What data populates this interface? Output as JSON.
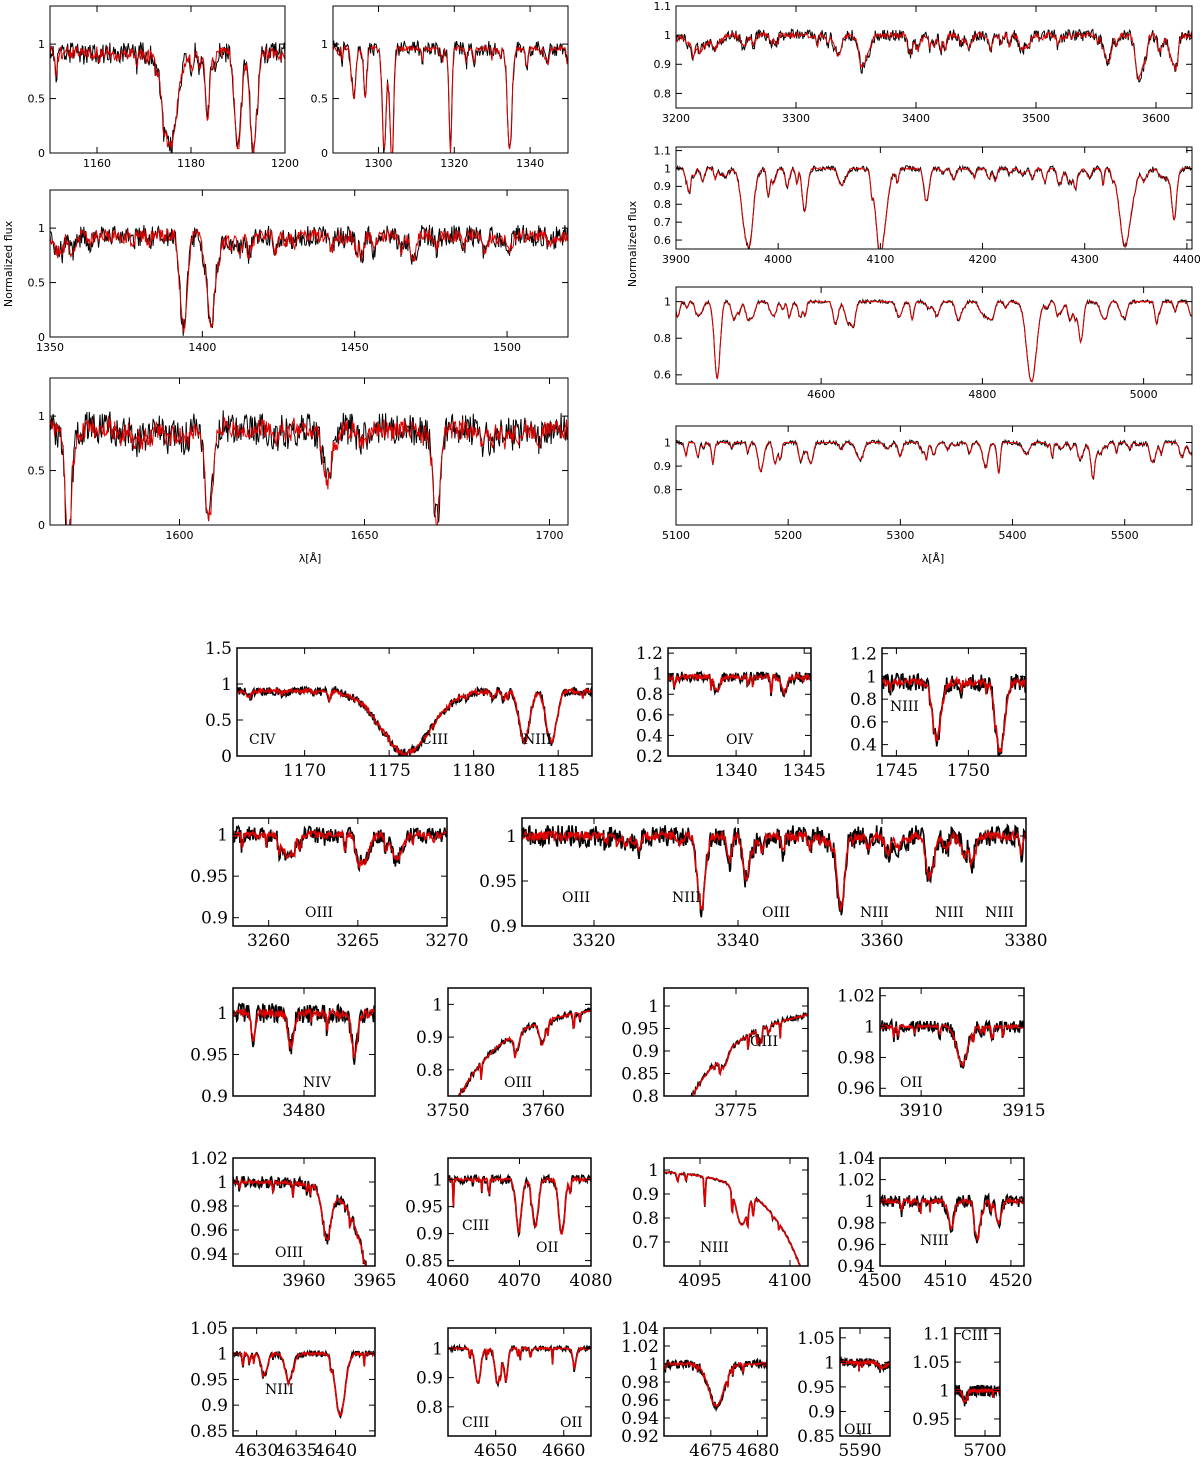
{
  "figure": {
    "colors": {
      "observed": "#000000",
      "model": "#e00000"
    },
    "top_xlabel": "λ[Å]",
    "top_ylabel": "Normalized flux"
  },
  "chart_data": [
    {
      "type": "line",
      "id": "p1",
      "xlim": [
        1150,
        1200
      ],
      "ylim": [
        0,
        1.35
      ],
      "xticks": [
        1160,
        1180,
        1200
      ],
      "yticks": [
        0,
        0.5,
        1
      ],
      "lines": [
        [
          1175.5,
          0.06,
          1.5
        ],
        [
          1190.0,
          0.05,
          0.7
        ],
        [
          1193.3,
          0.05,
          0.7
        ],
        [
          1183.5,
          0.3,
          0.4
        ]
      ],
      "noise": 0.1,
      "mnoise": 0.12,
      "cont": 0.92,
      "ylabel": "",
      "labels": []
    },
    {
      "type": "line",
      "id": "p2",
      "xlim": [
        1288,
        1350
      ],
      "ylim": [
        0,
        1.35
      ],
      "xticks": [
        1300,
        1320,
        1340
      ],
      "yticks": [
        0,
        0.5,
        1
      ],
      "lines": [
        [
          1301.5,
          0.02,
          0.5
        ],
        [
          1303.5,
          0.02,
          0.5
        ],
        [
          1319,
          0.02,
          0.35
        ],
        [
          1334.6,
          0.02,
          0.6
        ],
        [
          1293.5,
          0.6,
          0.5
        ],
        [
          1296.5,
          0.5,
          0.4
        ]
      ],
      "noise": 0.07,
      "mnoise": 0.05,
      "cont": 0.96,
      "ylabel": "",
      "labels": []
    },
    {
      "type": "line",
      "id": "p3",
      "xlim": [
        1350,
        1520
      ],
      "ylim": [
        0,
        1.35
      ],
      "xticks": [
        1350,
        1400,
        1450,
        1500
      ],
      "yticks": [
        0,
        0.5,
        1
      ],
      "lines": [
        [
          1393.8,
          0.1,
          1.2
        ],
        [
          1402.8,
          0.1,
          1.2
        ]
      ],
      "noise": 0.1,
      "mnoise": 0.12,
      "cont": 0.93,
      "ylabel": "",
      "labels": []
    },
    {
      "type": "line",
      "id": "p4",
      "xlim": [
        1565,
        1705
      ],
      "ylim": [
        0,
        1.35
      ],
      "xticks": [
        1600,
        1650,
        1700
      ],
      "yticks": [
        0,
        0.5,
        1
      ],
      "lines": [
        [
          1608,
          0.1,
          1.0
        ],
        [
          1669.5,
          0.05,
          1.0
        ],
        [
          1570,
          0,
          0.8
        ],
        [
          1640,
          0.4,
          1.0
        ]
      ],
      "noise": 0.15,
      "mnoise": 0.18,
      "cont": 0.88,
      "ylabel": "",
      "labels": []
    },
    {
      "type": "line",
      "id": "p5",
      "xlim": [
        3200,
        3630
      ],
      "ylim": [
        0.75,
        1.1
      ],
      "xticks": [
        3200,
        3300,
        3400,
        3500,
        3600
      ],
      "yticks": [
        0.8,
        0.9,
        1,
        1.1
      ],
      "lines": [
        [
          3587,
          0.87,
          3
        ],
        [
          3335,
          0.93,
          3
        ],
        [
          3355,
          0.93,
          3
        ]
      ],
      "noise": 0.02,
      "mnoise": 0.02,
      "cont": 1.0,
      "ylabel": "",
      "labels": []
    },
    {
      "type": "line",
      "id": "p6",
      "xlim": [
        3900,
        4405
      ],
      "ylim": [
        0.55,
        1.12
      ],
      "xticks": [
        3900,
        4000,
        4100,
        4200,
        4300,
        4400
      ],
      "yticks": [
        0.6,
        0.7,
        0.8,
        0.9,
        1,
        1.1
      ],
      "lines": [
        [
          3970,
          0.58,
          5
        ],
        [
          4101,
          0.58,
          5
        ],
        [
          4340,
          0.58,
          5
        ],
        [
          4026,
          0.8,
          2.5
        ],
        [
          4009,
          0.9,
          2
        ],
        [
          4144,
          0.88,
          2
        ],
        [
          4387,
          0.85,
          2.5
        ],
        [
          3926,
          0.93,
          2
        ]
      ],
      "noise": 0.015,
      "mnoise": 0.01,
      "cont": 1.0,
      "ylabel": "Normalized flux",
      "labels": []
    },
    {
      "type": "line",
      "id": "p7",
      "xlim": [
        4420,
        5060
      ],
      "ylim": [
        0.55,
        1.08
      ],
      "xticks": [
        4600,
        4800,
        5000
      ],
      "yticks": [
        0.6,
        0.8,
        1
      ],
      "lines": [
        [
          4861,
          0.56,
          6
        ],
        [
          4471,
          0.62,
          3
        ],
        [
          4922,
          0.78,
          3
        ],
        [
          5016,
          0.88,
          2
        ],
        [
          4713,
          0.9,
          2
        ]
      ],
      "noise": 0.01,
      "mnoise": 0.008,
      "cont": 1.0,
      "ylabel": "",
      "labels": []
    },
    {
      "type": "line",
      "id": "p8",
      "xlim": [
        5100,
        5560
      ],
      "ylim": [
        0.65,
        1.07
      ],
      "xticks": [
        5100,
        5200,
        5300,
        5400,
        5500
      ],
      "yticks": [
        0.8,
        0.9,
        1
      ],
      "lines": [
        [
          5412,
          0.95,
          3
        ]
      ],
      "noise": 0.01,
      "mnoise": 0.004,
      "cont": 1.0,
      "ylabel": "",
      "labels": []
    },
    {
      "type": "line",
      "id": "z1",
      "xlim": [
        1166,
        1187
      ],
      "ylim": [
        0,
        1.5
      ],
      "xticks": [
        1170,
        1175,
        1180,
        1185
      ],
      "yticks": [
        0,
        0.5,
        1,
        1.5
      ],
      "lines": [
        [
          1176,
          0.05,
          1.5
        ],
        [
          1183,
          0.2,
          0.3
        ],
        [
          1184.6,
          0.2,
          0.3
        ]
      ],
      "noise": 0.06,
      "mnoise": 0.06,
      "cont": 0.9,
      "ylabel": "",
      "labels": [
        "CIV",
        "CIII",
        "NIII"
      ]
    },
    {
      "type": "line",
      "id": "z2",
      "xlim": [
        1335,
        1345.5
      ],
      "ylim": [
        0.2,
        1.25
      ],
      "xticks": [
        1340,
        1345
      ],
      "yticks": [
        0.2,
        0.4,
        0.6,
        0.8,
        1,
        1.2
      ],
      "lines": [
        [
          1338.6,
          0.82,
          0.2
        ],
        [
          1343.5,
          0.82,
          0.2
        ]
      ],
      "noise": 0.05,
      "mnoise": 0.05,
      "cont": 0.97,
      "ylabel": "",
      "labels": [
        "OIV"
      ]
    },
    {
      "type": "line",
      "id": "z3",
      "xlim": [
        1744,
        1754
      ],
      "ylim": [
        0.3,
        1.25
      ],
      "xticks": [
        1745,
        1750
      ],
      "yticks": [
        0.4,
        0.6,
        0.8,
        1,
        1.2
      ],
      "lines": [
        [
          1747.8,
          0.45,
          0.3
        ],
        [
          1752.2,
          0.35,
          0.3
        ]
      ],
      "noise": 0.08,
      "mnoise": 0.07,
      "cont": 0.95,
      "ylabel": "",
      "labels": [
        "NIII"
      ]
    },
    {
      "type": "line",
      "id": "z4",
      "xlim": [
        3258,
        3270
      ],
      "ylim": [
        0.89,
        1.02
      ],
      "xticks": [
        3260,
        3265,
        3270
      ],
      "yticks": [
        0.9,
        0.95,
        1
      ],
      "lines": [
        [
          3261.1,
          0.975,
          0.3
        ],
        [
          3265.3,
          0.965,
          0.3
        ],
        [
          3267.2,
          0.97,
          0.3
        ]
      ],
      "noise": 0.01,
      "mnoise": 0.008,
      "cont": 1.0,
      "ylabel": "",
      "labels": [
        "OIII"
      ]
    },
    {
      "type": "line",
      "id": "z5",
      "xlim": [
        3310,
        3380
      ],
      "ylim": [
        0.9,
        1.02
      ],
      "xticks": [
        3320,
        3340,
        3360,
        3380
      ],
      "yticks": [
        0.9,
        0.95,
        1
      ],
      "lines": [
        [
          3334.9,
          0.92,
          0.5
        ],
        [
          3354.3,
          0.92,
          0.5
        ],
        [
          3341,
          0.97,
          0.4
        ],
        [
          3367,
          0.97,
          0.4
        ]
      ],
      "noise": 0.012,
      "mnoise": 0.01,
      "cont": 1.0,
      "ylabel": "",
      "labels": [
        "OIII",
        "NIII",
        "OIII",
        "NIII",
        "NIII",
        "NIII"
      ]
    },
    {
      "type": "line",
      "id": "z6",
      "xlim": [
        3473,
        3487
      ],
      "ylim": [
        0.9,
        1.03
      ],
      "xticks": [
        3480
      ],
      "yticks": [
        0.9,
        0.95,
        1
      ],
      "lines": [
        [
          3478.7,
          0.96,
          0.3
        ],
        [
          3485.0,
          0.95,
          0.3
        ],
        [
          3475,
          0.97,
          0.2
        ]
      ],
      "noise": 0.012,
      "mnoise": 0.01,
      "cont": 1.0,
      "ylabel": "",
      "labels": [
        "NIV"
      ]
    },
    {
      "type": "line",
      "id": "z7",
      "xlim": [
        3750,
        3765
      ],
      "ylim": [
        0.72,
        1.05
      ],
      "xticks": [
        3750,
        3760
      ],
      "yticks": [
        0.8,
        0.9,
        1
      ],
      "lines": [
        [
          3759.9,
          0.93,
          0.3
        ],
        [
          3757.2,
          0.95,
          0.3
        ]
      ],
      "noise": 0.01,
      "mnoise": 0.005,
      "cont": 1.0,
      "ylabel": "",
      "labels": [
        "OIII"
      ]
    },
    {
      "type": "line",
      "id": "z8",
      "xlim": [
        3769,
        3781
      ],
      "ylim": [
        0.8,
        1.04
      ],
      "xticks": [
        3775
      ],
      "yticks": [
        0.8,
        0.85,
        0.9,
        0.95,
        1
      ],
      "lines": [
        [
          3774,
          0.97,
          0.3
        ]
      ],
      "noise": 0.006,
      "mnoise": 0.004,
      "cont": 1.0,
      "ylabel": "",
      "labels": [
        "OIII"
      ]
    },
    {
      "type": "line",
      "id": "z9",
      "xlim": [
        3908,
        3915
      ],
      "ylim": [
        0.955,
        1.025
      ],
      "xticks": [
        3910,
        3915
      ],
      "yticks": [
        0.96,
        0.98,
        1,
        1.02
      ],
      "lines": [
        [
          3912,
          0.975,
          0.25
        ]
      ],
      "noise": 0.004,
      "mnoise": 0.002,
      "cont": 1.0,
      "ylabel": "",
      "labels": [
        "OII"
      ]
    },
    {
      "type": "line",
      "id": "z10",
      "xlim": [
        3955,
        3965
      ],
      "ylim": [
        0.93,
        1.02
      ],
      "xticks": [
        3960,
        3965
      ],
      "yticks": [
        0.94,
        0.96,
        0.98,
        1,
        1.02
      ],
      "lines": [
        [
          3961.6,
          0.96,
          0.3
        ]
      ],
      "noise": 0.005,
      "mnoise": 0.003,
      "cont": 1.0,
      "ylabel": "",
      "labels": [
        "OIII"
      ]
    },
    {
      "type": "line",
      "id": "z11",
      "xlim": [
        4060,
        4080
      ],
      "ylim": [
        0.84,
        1.04
      ],
      "xticks": [
        4060,
        4070,
        4080
      ],
      "yticks": [
        0.85,
        0.9,
        0.95,
        1
      ],
      "lines": [
        [
          4069.9,
          0.91,
          0.4
        ],
        [
          4072.2,
          0.91,
          0.4
        ],
        [
          4075.9,
          0.9,
          0.4
        ]
      ],
      "noise": 0.008,
      "mnoise": 0.006,
      "cont": 1.0,
      "ylabel": "",
      "labels": [
        "CIII",
        "OII"
      ]
    },
    {
      "type": "line",
      "id": "z12",
      "xlim": [
        4093,
        4101
      ],
      "ylim": [
        0.6,
        1.05
      ],
      "xticks": [
        4095,
        4100
      ],
      "yticks": [
        0.7,
        0.8,
        0.9,
        1
      ],
      "lines": [
        [
          4097.3,
          0.85,
          0.3
        ]
      ],
      "noise": 0.005,
      "mnoise": 0.003,
      "cont": 1.0,
      "ylabel": "",
      "labels": [
        "NIII"
      ]
    },
    {
      "type": "line",
      "id": "z13",
      "xlim": [
        4500,
        4522
      ],
      "ylim": [
        0.94,
        1.04
      ],
      "xticks": [
        4500,
        4510,
        4520
      ],
      "yticks": [
        0.94,
        0.96,
        0.98,
        1,
        1.02,
        1.04
      ],
      "lines": [
        [
          4510.9,
          0.975,
          0.4
        ],
        [
          4514.9,
          0.965,
          0.4
        ],
        [
          4518.1,
          0.98,
          0.4
        ]
      ],
      "noise": 0.006,
      "mnoise": 0.004,
      "cont": 1.0,
      "ylabel": "",
      "labels": [
        "NIII"
      ]
    },
    {
      "type": "line",
      "id": "z14",
      "xlim": [
        4627,
        4645
      ],
      "ylim": [
        0.84,
        1.05
      ],
      "xticks": [
        4630,
        4635,
        4640
      ],
      "yticks": [
        0.85,
        0.9,
        0.95,
        1,
        1.05
      ],
      "lines": [
        [
          4634.1,
          0.95,
          0.5
        ],
        [
          4640.6,
          0.88,
          0.6
        ],
        [
          4631,
          0.96,
          0.4
        ]
      ],
      "noise": 0.006,
      "mnoise": 0.005,
      "cont": 1.0,
      "ylabel": "",
      "labels": [
        "NIII"
      ]
    },
    {
      "type": "line",
      "id": "z15",
      "xlim": [
        4643,
        4664
      ],
      "ylim": [
        0.7,
        1.07
      ],
      "xticks": [
        4650,
        4660
      ],
      "yticks": [
        0.8,
        0.9,
        1
      ],
      "lines": [
        [
          4647.4,
          0.88,
          0.4
        ],
        [
          4650.3,
          0.88,
          0.4
        ],
        [
          4651.5,
          0.9,
          0.3
        ],
        [
          4661.6,
          0.95,
          0.3
        ]
      ],
      "noise": 0.008,
      "mnoise": 0.006,
      "cont": 1.0,
      "ylabel": "",
      "labels": [
        "CIII",
        "OII"
      ]
    },
    {
      "type": "line",
      "id": "z16",
      "xlim": [
        4670,
        4681
      ],
      "ylim": [
        0.92,
        1.04
      ],
      "xticks": [
        4675,
        4680
      ],
      "yticks": [
        0.92,
        0.94,
        0.96,
        0.98,
        1,
        1.02,
        1.04
      ],
      "lines": [
        [
          4675.6,
          0.953,
          0.8
        ]
      ],
      "noise": 0.005,
      "mnoise": 0.003,
      "cont": 1.0,
      "ylabel": "",
      "labels": []
    },
    {
      "type": "line",
      "id": "z17",
      "xlim": [
        5588,
        5593
      ],
      "ylim": [
        0.85,
        1.07
      ],
      "xticks": [
        5590
      ],
      "yticks": [
        0.85,
        0.9,
        0.95,
        1,
        1.05
      ],
      "lines": [
        [
          5592.3,
          0.99,
          0.4
        ]
      ],
      "noise": 0.008,
      "mnoise": 0.004,
      "cont": 1.0,
      "ylabel": "",
      "labels": [
        "OIII"
      ]
    },
    {
      "type": "line",
      "id": "z18",
      "xlim": [
        5694,
        5703
      ],
      "ylim": [
        0.92,
        1.11
      ],
      "xticks": [
        5700
      ],
      "yticks": [
        0.95,
        1,
        1.05,
        1.1
      ],
      "lines": [
        [
          5696,
          0.98,
          0.4
        ]
      ],
      "noise": 0.01,
      "mnoise": 0.005,
      "cont": 1.0,
      "ylabel": "",
      "labels": [
        "CIII"
      ]
    }
  ]
}
